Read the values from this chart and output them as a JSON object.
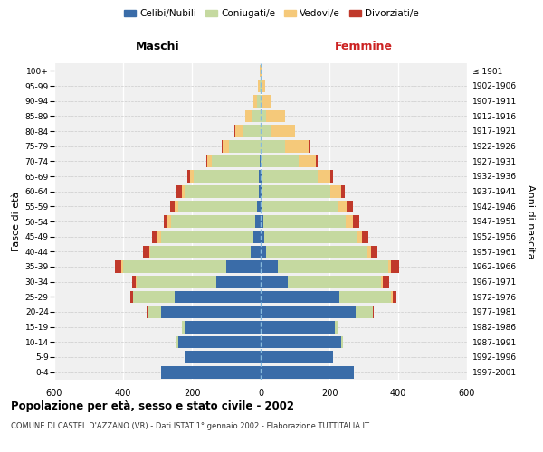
{
  "age_groups": [
    "0-4",
    "5-9",
    "10-14",
    "15-19",
    "20-24",
    "25-29",
    "30-34",
    "35-39",
    "40-44",
    "45-49",
    "50-54",
    "55-59",
    "60-64",
    "65-69",
    "70-74",
    "75-79",
    "80-84",
    "85-89",
    "90-94",
    "95-99",
    "100+"
  ],
  "birth_years": [
    "1997-2001",
    "1992-1996",
    "1987-1991",
    "1982-1986",
    "1977-1981",
    "1972-1976",
    "1967-1971",
    "1962-1966",
    "1957-1961",
    "1952-1956",
    "1947-1951",
    "1942-1946",
    "1937-1941",
    "1932-1936",
    "1927-1931",
    "1922-1926",
    "1917-1921",
    "1912-1916",
    "1907-1911",
    "1902-1906",
    "≤ 1901"
  ],
  "male_celibi": [
    290,
    220,
    240,
    220,
    290,
    250,
    130,
    100,
    30,
    20,
    15,
    10,
    5,
    5,
    2,
    1,
    0,
    0,
    0,
    0,
    0
  ],
  "male_coniugati": [
    0,
    0,
    5,
    10,
    40,
    120,
    230,
    300,
    290,
    270,
    245,
    230,
    215,
    190,
    140,
    90,
    50,
    25,
    10,
    3,
    1
  ],
  "male_vedovi": [
    0,
    0,
    0,
    0,
    0,
    2,
    3,
    5,
    5,
    10,
    10,
    10,
    10,
    10,
    12,
    20,
    25,
    20,
    12,
    5,
    1
  ],
  "male_divorziati": [
    0,
    0,
    0,
    0,
    2,
    8,
    12,
    20,
    18,
    15,
    12,
    12,
    15,
    8,
    5,
    2,
    1,
    0,
    0,
    0,
    0
  ],
  "female_celibi": [
    270,
    210,
    235,
    215,
    275,
    230,
    80,
    50,
    15,
    10,
    8,
    5,
    3,
    2,
    1,
    0,
    0,
    0,
    0,
    0,
    0
  ],
  "female_coniugati": [
    0,
    0,
    5,
    10,
    50,
    150,
    270,
    320,
    295,
    270,
    240,
    220,
    200,
    165,
    110,
    70,
    30,
    15,
    5,
    2,
    0
  ],
  "female_vedovi": [
    0,
    0,
    0,
    0,
    0,
    3,
    5,
    8,
    10,
    15,
    20,
    25,
    30,
    35,
    50,
    70,
    70,
    55,
    25,
    10,
    2
  ],
  "female_divorziati": [
    0,
    0,
    0,
    0,
    5,
    12,
    18,
    25,
    20,
    18,
    20,
    18,
    12,
    8,
    4,
    2,
    1,
    0,
    0,
    0,
    0
  ],
  "colors": {
    "celibi": "#3a6ca8",
    "coniugati": "#c5d9a0",
    "vedovi": "#f5c97a",
    "divorziati": "#c0392b"
  },
  "title_main": "Popolazione per età, sesso e stato civile - 2002",
  "title_sub": "COMUNE DI CASTEL D'AZZANO (VR) - Dati ISTAT 1° gennaio 2002 - Elaborazione TUTTITALIA.IT",
  "xlabel_left": "Maschi",
  "xlabel_right": "Femmine",
  "ylabel_left": "Fasce di età",
  "ylabel_right": "Anni di nascita",
  "xlim": 600,
  "bg_color": "#f0f0f0"
}
